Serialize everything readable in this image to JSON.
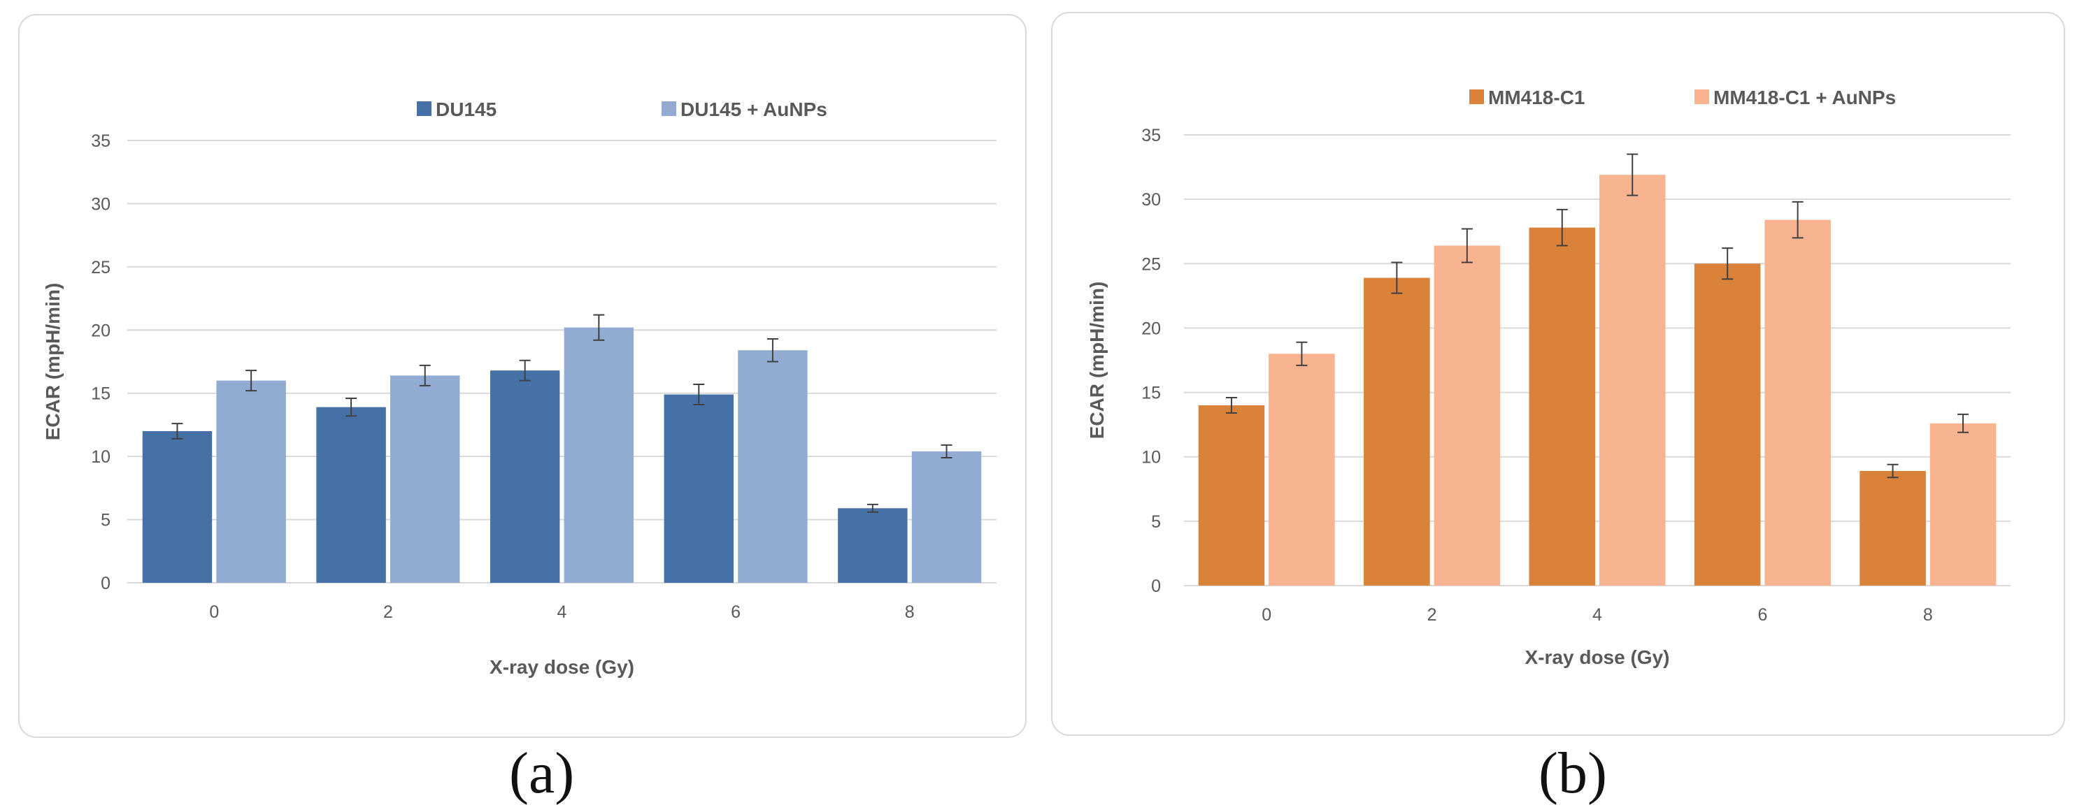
{
  "figure": {
    "label_a": "(a)",
    "label_b": "(b)"
  },
  "chart_data": [
    {
      "type": "bar",
      "title": "",
      "categories": [
        "0",
        "2",
        "4",
        "6",
        "8"
      ],
      "series": [
        {
          "name": "DU145",
          "color": "#4671a6",
          "values": [
            12.0,
            13.9,
            16.8,
            14.9,
            5.9
          ],
          "errors": [
            0.6,
            0.7,
            0.8,
            0.8,
            0.3
          ]
        },
        {
          "name": "DU145 + AuNPs",
          "color": "#92abd3",
          "values": [
            16.0,
            16.4,
            20.2,
            18.4,
            10.4
          ],
          "errors": [
            0.8,
            0.8,
            1.0,
            0.9,
            0.5
          ]
        }
      ],
      "xlabel": "X-ray dose (Gy)",
      "ylabel": "ECAR (mpH/min)",
      "ylim": [
        0,
        35
      ],
      "yticks": [
        "0",
        "5",
        "10",
        "15",
        "20",
        "25",
        "30",
        "35"
      ],
      "grid": true,
      "legend": "top"
    },
    {
      "type": "bar",
      "title": "",
      "categories": [
        "0",
        "2",
        "4",
        "6",
        "8"
      ],
      "series": [
        {
          "name": "MM418-C1",
          "color": "#db823a",
          "values": [
            14.0,
            23.9,
            27.8,
            25.0,
            8.9
          ],
          "errors": [
            0.6,
            1.2,
            1.4,
            1.2,
            0.5
          ]
        },
        {
          "name": "MM418-C1 + AuNPs",
          "color": "#f8b391",
          "values": [
            18.0,
            26.4,
            31.9,
            28.4,
            12.6
          ],
          "errors": [
            0.9,
            1.3,
            1.6,
            1.4,
            0.7
          ]
        }
      ],
      "xlabel": "X-ray dose (Gy)",
      "ylabel": "ECAR (mpH/min)",
      "ylim": [
        0,
        35
      ],
      "yticks": [
        "0",
        "5",
        "10",
        "15",
        "20",
        "25",
        "30",
        "35"
      ],
      "grid": true,
      "legend": "top"
    }
  ]
}
